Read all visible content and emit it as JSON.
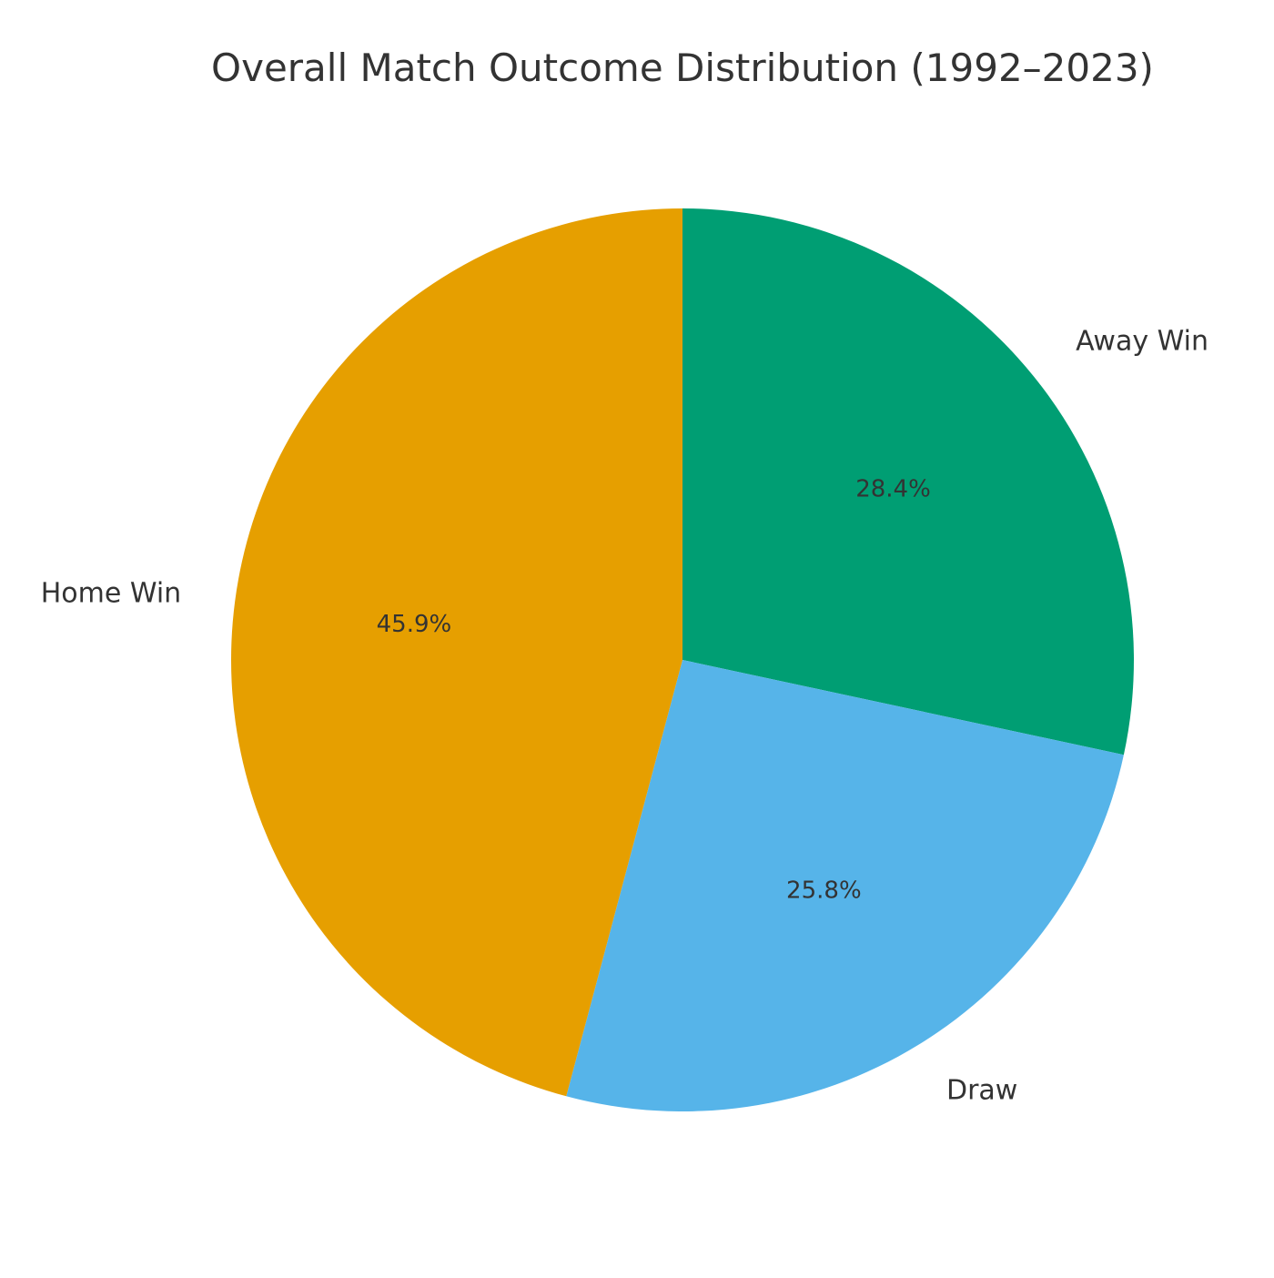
{
  "chart_data": {
    "type": "pie",
    "title": "Overall Match Outcome Distribution (1992–2023)",
    "slices": [
      {
        "label": "Away Win",
        "value": 28.4,
        "pct_label": "28.4%",
        "color": "#009E73"
      },
      {
        "label": "Draw",
        "value": 25.8,
        "pct_label": "25.8%",
        "color": "#56B4E9"
      },
      {
        "label": "Home Win",
        "value": 45.9,
        "pct_label": "45.9%",
        "color": "#E69F00"
      }
    ],
    "start_angle": "top",
    "direction": "clockwise",
    "text_color": "#333333",
    "background": "#ffffff"
  }
}
